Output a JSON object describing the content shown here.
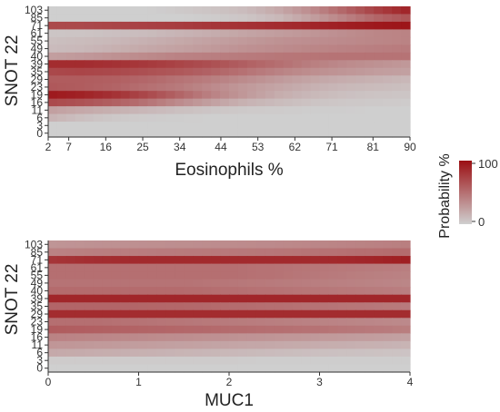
{
  "colors": {
    "low": "#cfcfcf",
    "high": "#9b0f13",
    "axis": "#333333"
  },
  "legend": {
    "title": "Probability %",
    "max_label": "100",
    "min_label": "0"
  },
  "chart_data": [
    {
      "type": "heatmap",
      "xlabel": "Eosinophils %",
      "ylabel": "SNOT 22",
      "x_ticks": [
        "2",
        "7",
        "16",
        "25",
        "34",
        "44",
        "53",
        "62",
        "71",
        "81",
        "90"
      ],
      "x_tick_values": [
        2,
        7,
        16,
        25,
        34,
        44,
        53,
        62,
        71,
        81,
        90
      ],
      "xlim": [
        2,
        90
      ],
      "y_ticks": [
        "0",
        "3",
        "6",
        "11",
        "16",
        "19",
        "23",
        "29",
        "35",
        "39",
        "40",
        "49",
        "55",
        "61",
        "71",
        "85",
        "103"
      ],
      "y_levels": 17,
      "series": [
        {
          "y": "103",
          "start": [
            0,
            0,
            0,
            0,
            3,
            6,
            10,
            20,
            35,
            55,
            75,
            90
          ]
        },
        {
          "y": "85",
          "start": [
            0,
            0,
            0,
            0,
            0,
            2,
            5,
            12,
            25,
            40,
            55,
            65
          ]
        },
        {
          "y": "71",
          "start": [
            70,
            70,
            72,
            74,
            76,
            80,
            82,
            85,
            88,
            92,
            95,
            97
          ]
        },
        {
          "y": "61",
          "start": [
            5,
            6,
            8,
            10,
            14,
            18,
            22,
            26,
            30,
            34,
            38,
            40
          ]
        },
        {
          "y": "55",
          "start": [
            8,
            10,
            12,
            16,
            20,
            24,
            28,
            32,
            34,
            36,
            38,
            40
          ]
        },
        {
          "y": "49",
          "start": [
            10,
            12,
            16,
            20,
            24,
            28,
            32,
            35,
            38,
            40,
            42,
            44
          ]
        },
        {
          "y": "40",
          "start": [
            25,
            28,
            32,
            36,
            40,
            42,
            44,
            46,
            47,
            48,
            48,
            48
          ]
        },
        {
          "y": "39",
          "start": [
            85,
            85,
            82,
            78,
            72,
            66,
            58,
            50,
            42,
            36,
            32,
            28
          ]
        },
        {
          "y": "35",
          "start": [
            70,
            72,
            70,
            66,
            62,
            56,
            48,
            40,
            34,
            30,
            26,
            24
          ]
        },
        {
          "y": "29",
          "start": [
            60,
            60,
            58,
            54,
            48,
            42,
            35,
            28,
            22,
            18,
            15,
            12
          ]
        },
        {
          "y": "23",
          "start": [
            62,
            60,
            56,
            50,
            44,
            36,
            28,
            22,
            16,
            12,
            10,
            8
          ]
        },
        {
          "y": "19",
          "start": [
            95,
            90,
            82,
            70,
            55,
            40,
            28,
            18,
            12,
            8,
            6,
            5
          ]
        },
        {
          "y": "16",
          "start": [
            70,
            65,
            58,
            48,
            35,
            24,
            15,
            10,
            6,
            4,
            3,
            2
          ]
        },
        {
          "y": "11",
          "start": [
            25,
            20,
            16,
            12,
            8,
            5,
            3,
            2,
            1,
            1,
            0,
            0
          ]
        },
        {
          "y": "6",
          "start": [
            15,
            8,
            4,
            2,
            1,
            0,
            0,
            0,
            0,
            0,
            0,
            0
          ]
        },
        {
          "y": "3",
          "start": [
            0,
            0,
            0,
            0,
            0,
            0,
            0,
            0,
            0,
            0,
            0,
            0
          ]
        },
        {
          "y": "0",
          "start": [
            0,
            0,
            0,
            0,
            0,
            0,
            0,
            0,
            0,
            0,
            0,
            0
          ]
        }
      ]
    },
    {
      "type": "heatmap",
      "xlabel": "MUC1",
      "ylabel": "SNOT 22",
      "x_ticks": [
        "0",
        "1",
        "2",
        "3",
        "4"
      ],
      "x_tick_values": [
        0,
        1,
        2,
        3,
        4
      ],
      "xlim": [
        0,
        4
      ],
      "y_ticks": [
        "0",
        "3",
        "6",
        "11",
        "16",
        "19",
        "23",
        "29",
        "35",
        "39",
        "40",
        "49",
        "55",
        "61",
        "71",
        "85",
        "103"
      ],
      "y_levels": 17,
      "series": [
        {
          "y": "103",
          "start": [
            30,
            32,
            33,
            34,
            35,
            36,
            38,
            40,
            42
          ]
        },
        {
          "y": "85",
          "start": [
            40,
            42,
            43,
            44,
            45,
            46,
            48,
            50,
            52
          ]
        },
        {
          "y": "71",
          "start": [
            80,
            84,
            86,
            86,
            86,
            86,
            86,
            88,
            92
          ]
        },
        {
          "y": "61",
          "start": [
            50,
            50,
            50,
            50,
            50,
            48,
            46,
            44,
            42
          ]
        },
        {
          "y": "55",
          "start": [
            50,
            50,
            50,
            50,
            50,
            48,
            45,
            42,
            40
          ]
        },
        {
          "y": "49",
          "start": [
            48,
            48,
            48,
            48,
            46,
            44,
            42,
            40,
            38
          ]
        },
        {
          "y": "40",
          "start": [
            52,
            52,
            52,
            52,
            50,
            48,
            46,
            44,
            42
          ]
        },
        {
          "y": "39",
          "start": [
            88,
            88,
            88,
            88,
            88,
            88,
            88,
            88,
            88
          ]
        },
        {
          "y": "35",
          "start": [
            55,
            55,
            55,
            54,
            52,
            50,
            48,
            46,
            44
          ]
        },
        {
          "y": "29",
          "start": [
            85,
            85,
            85,
            85,
            85,
            85,
            85,
            85,
            85
          ]
        },
        {
          "y": "23",
          "start": [
            50,
            50,
            48,
            46,
            44,
            42,
            40,
            38,
            36
          ]
        },
        {
          "y": "19",
          "start": [
            60,
            58,
            56,
            54,
            52,
            50,
            48,
            45,
            42
          ]
        },
        {
          "y": "16",
          "start": [
            40,
            38,
            36,
            34,
            32,
            30,
            28,
            26,
            24
          ]
        },
        {
          "y": "11",
          "start": [
            30,
            28,
            26,
            24,
            22,
            20,
            18,
            16,
            14
          ]
        },
        {
          "y": "6",
          "start": [
            20,
            18,
            16,
            14,
            12,
            10,
            8,
            7,
            6
          ]
        },
        {
          "y": "3",
          "start": [
            2,
            2,
            2,
            2,
            2,
            1,
            1,
            1,
            1
          ]
        },
        {
          "y": "0",
          "start": [
            0,
            0,
            0,
            0,
            0,
            0,
            0,
            0,
            0
          ]
        }
      ]
    }
  ]
}
